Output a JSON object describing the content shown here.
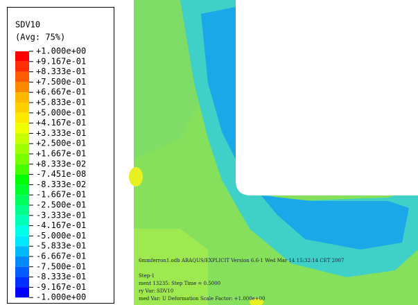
{
  "legend": {
    "title": "SDV10",
    "average": "(Avg: 75%)",
    "labels": [
      "+1.000e+00",
      "+9.167e-01",
      "+8.333e-01",
      "+7.500e-01",
      "+6.667e-01",
      "+5.833e-01",
      "+5.000e-01",
      "+4.167e-01",
      "+3.333e-01",
      "+2.500e-01",
      "+1.667e-01",
      "+8.333e-02",
      "-7.451e-08",
      "-8.333e-02",
      "-1.667e-01",
      "-2.500e-01",
      "-3.333e-01",
      "-4.167e-01",
      "-5.000e-01",
      "-5.833e-01",
      "-6.667e-01",
      "-7.500e-01",
      "-8.333e-01",
      "-9.167e-01",
      "-1.000e+00"
    ],
    "colors": [
      "#ff0000",
      "#ff2e00",
      "#ff5c00",
      "#ff8a00",
      "#ffb900",
      "#ffd000",
      "#ffe800",
      "#f0ff00",
      "#c8ff00",
      "#a0ff00",
      "#78ff00",
      "#46ff00",
      "#00ff00",
      "#00ff2e",
      "#00ff5c",
      "#00ff8a",
      "#00ffb9",
      "#00ffe8",
      "#00e8ff",
      "#00b9ff",
      "#008aff",
      "#005cff",
      "#002eff",
      "#0000ff"
    ]
  },
  "footer": {
    "info": "6mmferron1.odb   ABAQUS/EXPLICIT Version 6.6-1   Wed Mar 14 15:32:14 CET 2007",
    "step": "Step-1",
    "increment": "ment   13235: Step Time =   0.5000",
    "primary": "ry Var: SDV10",
    "deformed": "med Var: U   Deformation Scale Factor: +1.000e+00"
  }
}
